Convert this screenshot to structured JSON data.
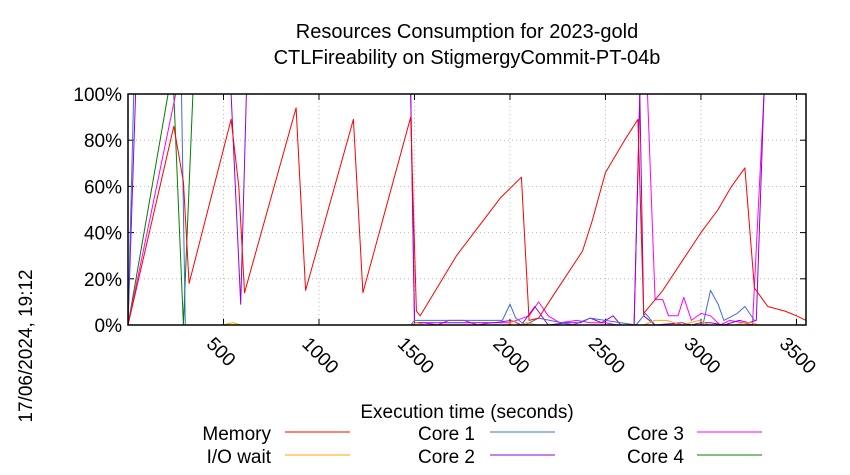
{
  "chart_data": {
    "type": "line",
    "title": "Resources Consumption for 2023-gold",
    "subtitle": "CTLFireability on StigmergyCommit-PT-04b",
    "xlabel": "Execution time (seconds)",
    "ylabel": "",
    "side_label": "17/06/2024, 19:12",
    "xlim": [
      0,
      3550
    ],
    "ylim": [
      0,
      100
    ],
    "x_ticks": [
      500,
      1000,
      1500,
      2000,
      2500,
      3000,
      3500
    ],
    "y_ticks": [
      0,
      20,
      40,
      60,
      80,
      100
    ],
    "y_tick_labels": [
      "0%",
      "20%",
      "40%",
      "60%",
      "80%",
      "100%"
    ],
    "grid": true,
    "legend_position": "bottom",
    "series": [
      {
        "name": "Memory",
        "color": "#ff0000",
        "points": [
          [
            0,
            0
          ],
          [
            240,
            86
          ],
          [
            290,
            62
          ],
          [
            320,
            18
          ],
          [
            540,
            89
          ],
          [
            580,
            60
          ],
          [
            610,
            14
          ],
          [
            880,
            94
          ],
          [
            930,
            15
          ],
          [
            1180,
            89
          ],
          [
            1230,
            14
          ],
          [
            1480,
            90
          ],
          [
            1510,
            6
          ],
          [
            1530,
            4
          ],
          [
            1720,
            30
          ],
          [
            1950,
            55
          ],
          [
            2060,
            64
          ],
          [
            2100,
            2
          ],
          [
            2150,
            3
          ],
          [
            2220,
            12
          ],
          [
            2380,
            32
          ],
          [
            2430,
            45
          ],
          [
            2500,
            66
          ],
          [
            2600,
            80
          ],
          [
            2670,
            89
          ],
          [
            2700,
            5
          ],
          [
            2800,
            15
          ],
          [
            2920,
            30
          ],
          [
            3000,
            40
          ],
          [
            3090,
            50
          ],
          [
            3160,
            60
          ],
          [
            3230,
            68
          ],
          [
            3280,
            16
          ],
          [
            3350,
            8
          ],
          [
            3440,
            6
          ],
          [
            3500,
            4
          ],
          [
            3550,
            2
          ]
        ]
      },
      {
        "name": "I/O wait",
        "color": "#ffa500",
        "points": [
          [
            0,
            0
          ],
          [
            490,
            0
          ],
          [
            550,
            1
          ],
          [
            590,
            0
          ],
          [
            1480,
            0
          ],
          [
            1510,
            1
          ],
          [
            1550,
            0
          ],
          [
            1990,
            0
          ],
          [
            2010,
            2
          ],
          [
            2050,
            0
          ],
          [
            2090,
            1
          ],
          [
            2140,
            0
          ],
          [
            2700,
            0
          ],
          [
            2760,
            2
          ],
          [
            2820,
            2
          ],
          [
            2860,
            1
          ],
          [
            2900,
            0
          ],
          [
            2990,
            2
          ],
          [
            3040,
            0
          ],
          [
            3180,
            0
          ],
          [
            3220,
            1
          ],
          [
            3270,
            1
          ],
          [
            3300,
            0
          ]
        ]
      },
      {
        "name": "Core 1",
        "color": "#4169e1",
        "points": [
          [
            0,
            0
          ],
          [
            30,
            100
          ],
          [
            280,
            100
          ],
          [
            300,
            0
          ],
          [
            1480,
            0
          ],
          [
            1500,
            2
          ],
          [
            1960,
            2
          ],
          [
            2000,
            9
          ],
          [
            2030,
            3
          ],
          [
            2080,
            0
          ],
          [
            2150,
            3
          ],
          [
            2330,
            0
          ],
          [
            2420,
            3
          ],
          [
            2660,
            0
          ],
          [
            2710,
            5
          ],
          [
            2760,
            0
          ],
          [
            2800,
            0
          ],
          [
            2870,
            0
          ],
          [
            2940,
            0
          ],
          [
            3010,
            0
          ],
          [
            3050,
            15
          ],
          [
            3090,
            9
          ],
          [
            3120,
            2
          ],
          [
            3190,
            5
          ],
          [
            3230,
            8
          ],
          [
            3280,
            2
          ]
        ]
      },
      {
        "name": "Core 2",
        "color": "#9400d3",
        "points": [
          [
            0,
            0
          ],
          [
            40,
            100
          ],
          [
            540,
            100
          ],
          [
            590,
            9
          ],
          [
            620,
            100
          ],
          [
            1480,
            100
          ],
          [
            1500,
            1
          ],
          [
            1560,
            1
          ],
          [
            1850,
            1
          ],
          [
            1920,
            1
          ],
          [
            2010,
            2
          ],
          [
            2060,
            0
          ],
          [
            2130,
            8
          ],
          [
            2200,
            0
          ],
          [
            2300,
            1
          ],
          [
            2370,
            1
          ],
          [
            2420,
            3
          ],
          [
            2480,
            1
          ],
          [
            2540,
            4
          ],
          [
            2580,
            0
          ],
          [
            2650,
            0
          ],
          [
            2680,
            100
          ],
          [
            2700,
            4
          ],
          [
            2760,
            0
          ],
          [
            2900,
            1
          ],
          [
            2950,
            0
          ],
          [
            3000,
            1
          ],
          [
            3050,
            1
          ],
          [
            3120,
            0
          ],
          [
            3200,
            2
          ],
          [
            3250,
            1
          ],
          [
            3290,
            2
          ],
          [
            3330,
            100
          ],
          [
            3550,
            100
          ]
        ]
      },
      {
        "name": "Core 3",
        "color": "#ff00ff",
        "points": [
          [
            0,
            0
          ],
          [
            250,
            100
          ],
          [
            320,
            100
          ],
          [
            1480,
            100
          ],
          [
            1500,
            1
          ],
          [
            1550,
            1
          ],
          [
            1620,
            0
          ],
          [
            1680,
            2
          ],
          [
            1760,
            2
          ],
          [
            1830,
            0
          ],
          [
            1900,
            1
          ],
          [
            2000,
            1
          ],
          [
            2100,
            4
          ],
          [
            2150,
            10
          ],
          [
            2200,
            4
          ],
          [
            2260,
            1
          ],
          [
            2350,
            2
          ],
          [
            2420,
            1
          ],
          [
            2500,
            1
          ],
          [
            2560,
            0
          ],
          [
            2650,
            0
          ],
          [
            2680,
            100
          ],
          [
            2720,
            100
          ],
          [
            2760,
            11
          ],
          [
            2800,
            11
          ],
          [
            2830,
            4
          ],
          [
            2880,
            4
          ],
          [
            2910,
            12
          ],
          [
            2950,
            2
          ],
          [
            3000,
            5
          ],
          [
            3050,
            4
          ],
          [
            3100,
            0
          ],
          [
            3150,
            2
          ],
          [
            3220,
            1
          ],
          [
            3270,
            0
          ],
          [
            3330,
            100
          ],
          [
            3550,
            100
          ]
        ]
      },
      {
        "name": "Core 4",
        "color": "#008000",
        "points": [
          [
            0,
            0
          ],
          [
            210,
            100
          ],
          [
            240,
            100
          ],
          [
            290,
            0
          ],
          [
            340,
            100
          ],
          [
            1480,
            100
          ],
          [
            3550,
            100
          ]
        ]
      }
    ]
  }
}
